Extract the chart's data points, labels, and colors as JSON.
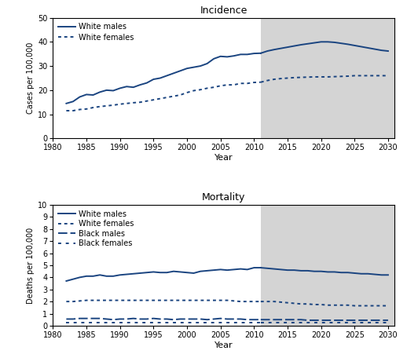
{
  "title_top": "Incidence",
  "title_bottom": "Mortality",
  "xlabel": "Year",
  "ylabel_top": "Cases per 100,000",
  "ylabel_bottom": "Deaths per 100,000",
  "shade_start": 2011,
  "shade_end": 2031,
  "shade_color": "#d4d4d4",
  "line_color": "#1a4480",
  "incidence": {
    "white_males_hist_years": [
      1982,
      1983,
      1984,
      1985,
      1986,
      1987,
      1988,
      1989,
      1990,
      1991,
      1992,
      1993,
      1994,
      1995,
      1996,
      1997,
      1998,
      1999,
      2000,
      2001,
      2002,
      2003,
      2004,
      2005,
      2006,
      2007,
      2008,
      2009,
      2010,
      2011
    ],
    "white_males_hist": [
      14.5,
      15.3,
      17.2,
      18.2,
      18.0,
      19.2,
      20.0,
      19.8,
      20.8,
      21.5,
      21.2,
      22.2,
      23.0,
      24.5,
      25.0,
      26.0,
      27.0,
      28.0,
      29.0,
      29.5,
      30.0,
      31.0,
      33.0,
      34.0,
      33.8,
      34.2,
      34.8,
      34.8,
      35.2,
      35.3
    ],
    "white_males_proj_years": [
      2011,
      2012,
      2013,
      2014,
      2015,
      2016,
      2017,
      2018,
      2019,
      2020,
      2021,
      2022,
      2023,
      2024,
      2025,
      2026,
      2027,
      2028,
      2029,
      2030
    ],
    "white_males_proj": [
      35.3,
      36.2,
      36.8,
      37.3,
      37.8,
      38.3,
      38.8,
      39.2,
      39.6,
      40.0,
      40.0,
      39.8,
      39.4,
      39.0,
      38.5,
      38.0,
      37.5,
      37.0,
      36.5,
      36.2
    ],
    "white_females_hist_years": [
      1982,
      1983,
      1984,
      1985,
      1986,
      1987,
      1988,
      1989,
      1990,
      1991,
      1992,
      1993,
      1994,
      1995,
      1996,
      1997,
      1998,
      1999,
      2000,
      2001,
      2002,
      2003,
      2004,
      2005,
      2006,
      2007,
      2008,
      2009,
      2010,
      2011
    ],
    "white_females_hist": [
      11.5,
      11.5,
      12.0,
      12.2,
      12.8,
      13.2,
      13.5,
      13.8,
      14.2,
      14.5,
      14.8,
      15.0,
      15.5,
      16.0,
      16.5,
      17.0,
      17.5,
      18.0,
      19.0,
      19.8,
      20.2,
      20.8,
      21.2,
      21.8,
      22.2,
      22.2,
      22.8,
      22.8,
      23.2,
      23.3
    ],
    "white_females_proj_years": [
      2011,
      2012,
      2013,
      2014,
      2015,
      2016,
      2017,
      2018,
      2019,
      2020,
      2021,
      2022,
      2023,
      2024,
      2025,
      2026,
      2027,
      2028,
      2029,
      2030
    ],
    "white_females_proj": [
      23.3,
      24.0,
      24.5,
      24.8,
      25.0,
      25.2,
      25.3,
      25.4,
      25.5,
      25.5,
      25.5,
      25.6,
      25.7,
      25.8,
      26.0,
      26.0,
      26.0,
      26.0,
      26.0,
      26.0
    ],
    "ylim": [
      0,
      50
    ],
    "yticks": [
      0,
      10,
      20,
      30,
      40,
      50
    ]
  },
  "mortality": {
    "white_males_hist_years": [
      1982,
      1983,
      1984,
      1985,
      1986,
      1987,
      1988,
      1989,
      1990,
      1991,
      1992,
      1993,
      1994,
      1995,
      1996,
      1997,
      1998,
      1999,
      2000,
      2001,
      2002,
      2003,
      2004,
      2005,
      2006,
      2007,
      2008,
      2009,
      2010,
      2011
    ],
    "white_males_hist": [
      3.7,
      3.85,
      4.0,
      4.1,
      4.1,
      4.2,
      4.1,
      4.1,
      4.2,
      4.25,
      4.3,
      4.35,
      4.4,
      4.45,
      4.4,
      4.4,
      4.5,
      4.45,
      4.4,
      4.35,
      4.5,
      4.55,
      4.6,
      4.65,
      4.6,
      4.65,
      4.7,
      4.65,
      4.8,
      4.8
    ],
    "white_males_proj_years": [
      2011,
      2012,
      2013,
      2014,
      2015,
      2016,
      2017,
      2018,
      2019,
      2020,
      2021,
      2022,
      2023,
      2024,
      2025,
      2026,
      2027,
      2028,
      2029,
      2030
    ],
    "white_males_proj": [
      4.8,
      4.75,
      4.7,
      4.65,
      4.6,
      4.6,
      4.55,
      4.55,
      4.5,
      4.5,
      4.45,
      4.45,
      4.4,
      4.4,
      4.35,
      4.3,
      4.3,
      4.25,
      4.2,
      4.2
    ],
    "white_females_hist_years": [
      1982,
      1983,
      1984,
      1985,
      1986,
      1987,
      1988,
      1989,
      1990,
      1991,
      1992,
      1993,
      1994,
      1995,
      1996,
      1997,
      1998,
      1999,
      2000,
      2001,
      2002,
      2003,
      2004,
      2005,
      2006,
      2007,
      2008,
      2009,
      2010,
      2011
    ],
    "white_females_hist": [
      2.0,
      2.0,
      2.05,
      2.1,
      2.1,
      2.1,
      2.1,
      2.1,
      2.1,
      2.1,
      2.1,
      2.1,
      2.1,
      2.1,
      2.1,
      2.1,
      2.1,
      2.1,
      2.1,
      2.1,
      2.1,
      2.1,
      2.1,
      2.1,
      2.1,
      2.05,
      2.0,
      2.0,
      2.0,
      2.0
    ],
    "white_females_proj_years": [
      2011,
      2012,
      2013,
      2014,
      2015,
      2016,
      2017,
      2018,
      2019,
      2020,
      2021,
      2022,
      2023,
      2024,
      2025,
      2026,
      2027,
      2028,
      2029,
      2030
    ],
    "white_females_proj": [
      2.0,
      2.0,
      2.0,
      1.95,
      1.9,
      1.85,
      1.8,
      1.8,
      1.75,
      1.75,
      1.7,
      1.7,
      1.7,
      1.7,
      1.65,
      1.65,
      1.65,
      1.65,
      1.65,
      1.65
    ],
    "black_males_hist_years": [
      1982,
      1983,
      1984,
      1985,
      1986,
      1987,
      1988,
      1989,
      1990,
      1991,
      1992,
      1993,
      1994,
      1995,
      1996,
      1997,
      1998,
      1999,
      2000,
      2001,
      2002,
      2003,
      2004,
      2005,
      2006,
      2007,
      2008,
      2009,
      2010,
      2011
    ],
    "black_males_hist": [
      0.55,
      0.55,
      0.6,
      0.6,
      0.6,
      0.6,
      0.55,
      0.5,
      0.55,
      0.55,
      0.6,
      0.55,
      0.55,
      0.6,
      0.55,
      0.55,
      0.5,
      0.55,
      0.55,
      0.55,
      0.55,
      0.5,
      0.55,
      0.6,
      0.55,
      0.55,
      0.55,
      0.5,
      0.5,
      0.5
    ],
    "black_males_proj_years": [
      2011,
      2012,
      2013,
      2014,
      2015,
      2016,
      2017,
      2018,
      2019,
      2020,
      2021,
      2022,
      2023,
      2024,
      2025,
      2026,
      2027,
      2028,
      2029,
      2030
    ],
    "black_males_proj": [
      0.5,
      0.5,
      0.5,
      0.5,
      0.5,
      0.5,
      0.5,
      0.45,
      0.45,
      0.45,
      0.45,
      0.45,
      0.45,
      0.45,
      0.45,
      0.45,
      0.45,
      0.45,
      0.45,
      0.45
    ],
    "black_females_hist_years": [
      1982,
      1983,
      1984,
      1985,
      1986,
      1987,
      1988,
      1989,
      1990,
      1991,
      1992,
      1993,
      1994,
      1995,
      1996,
      1997,
      1998,
      1999,
      2000,
      2001,
      2002,
      2003,
      2004,
      2005,
      2006,
      2007,
      2008,
      2009,
      2010,
      2011
    ],
    "black_females_hist": [
      0.28,
      0.28,
      0.28,
      0.28,
      0.28,
      0.28,
      0.28,
      0.28,
      0.28,
      0.28,
      0.28,
      0.28,
      0.28,
      0.28,
      0.28,
      0.28,
      0.28,
      0.28,
      0.28,
      0.28,
      0.28,
      0.28,
      0.28,
      0.28,
      0.28,
      0.28,
      0.28,
      0.28,
      0.28,
      0.28
    ],
    "black_females_proj_years": [
      2011,
      2012,
      2013,
      2014,
      2015,
      2016,
      2017,
      2018,
      2019,
      2020,
      2021,
      2022,
      2023,
      2024,
      2025,
      2026,
      2027,
      2028,
      2029,
      2030
    ],
    "black_females_proj": [
      0.28,
      0.28,
      0.28,
      0.28,
      0.28,
      0.28,
      0.28,
      0.28,
      0.28,
      0.28,
      0.28,
      0.28,
      0.28,
      0.28,
      0.28,
      0.28,
      0.28,
      0.28,
      0.28,
      0.28
    ],
    "ylim": [
      0,
      10
    ],
    "yticks": [
      0,
      1,
      2,
      3,
      4,
      5,
      6,
      7,
      8,
      9,
      10
    ]
  },
  "xlim": [
    1980,
    2031
  ],
  "xticks": [
    1980,
    1985,
    1990,
    1995,
    2000,
    2005,
    2010,
    2015,
    2020,
    2025,
    2030
  ]
}
